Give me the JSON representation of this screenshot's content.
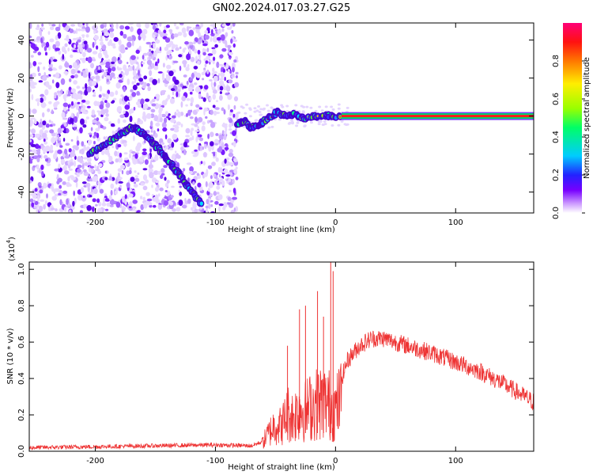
{
  "figure": {
    "title": "GN02.2024.017.03.27.G25"
  },
  "chart_data": [
    {
      "type": "heatmap",
      "title": "GN02.2024.017.03.27.G25",
      "xlabel": "Height of straight line (km)",
      "ylabel": "Frequency (Hz)",
      "xlim": [
        -255,
        165
      ],
      "ylim": [
        -51,
        49
      ],
      "xticks": [
        -200,
        -100,
        0,
        100
      ],
      "xtick_labels": [
        "-200",
        "-100",
        "0",
        "100"
      ],
      "yticks": [
        -40,
        -20,
        0,
        20,
        40
      ],
      "ytick_labels": [
        "-40",
        "-20",
        "0",
        "20",
        "40"
      ],
      "noise_region_xlim": [
        -255,
        -82
      ],
      "signal_tracks": [
        {
          "name_hint": "left-arc",
          "x": [
            -205,
            -195,
            -185,
            -175,
            -170,
            -165,
            -158,
            -152,
            -146,
            -140,
            -135,
            -130,
            -124,
            -118,
            -112
          ],
          "y": [
            -20,
            -16,
            -12,
            -8,
            -6,
            -7,
            -10,
            -14,
            -18,
            -23,
            -27,
            -31,
            -36,
            -41,
            -47
          ]
        },
        {
          "name_hint": "converging",
          "x": [
            -82,
            -75,
            -70,
            -62,
            -55,
            -48,
            -42,
            -35,
            -25,
            -15,
            -5,
            5
          ],
          "y": [
            -4,
            -3,
            -6,
            -4,
            -1,
            2,
            0,
            1,
            -1,
            0,
            0,
            0
          ]
        },
        {
          "name_hint": "steady-line",
          "x": [
            5,
            165
          ],
          "y": [
            0,
            0
          ]
        }
      ],
      "colorbar": {
        "label": "Normalized spectral amplitude",
        "range": [
          0.0,
          1.0
        ],
        "ticks": [
          0.0,
          0.2,
          0.4,
          0.6,
          0.8
        ],
        "tick_labels": [
          "0.0",
          "0.2",
          "0.4",
          "0.6",
          "0.8"
        ],
        "colors": [
          "#ffffff",
          "#cc99ff",
          "#7700ff",
          "#2222ff",
          "#00ccff",
          "#00ff66",
          "#99ff00",
          "#ffee00",
          "#ff7700",
          "#ff1111",
          "#ff0077"
        ]
      },
      "grid": false
    },
    {
      "type": "line",
      "xlabel": "Height of straight line (km)",
      "ylabel": "SNR (10 * v/v)",
      "y_multiplier": "(x10",
      "y_multiplier_exp": "4",
      "y_multiplier_close": ")",
      "xlim": [
        -255,
        165
      ],
      "ylim": [
        0.0,
        1.04
      ],
      "xticks": [
        -200,
        -100,
        0,
        100
      ],
      "xtick_labels": [
        "-200",
        "-100",
        "0",
        "100"
      ],
      "yticks": [
        0.0,
        0.2,
        0.4,
        0.6,
        0.8,
        1.0
      ],
      "ytick_labels": [
        "0.0",
        "0.2",
        "0.4",
        "0.6",
        "0.8",
        "1.0"
      ],
      "color": "#ee3333",
      "series": [
        {
          "x": [
            -255,
            -200,
            -150,
            -100,
            -70,
            -62,
            -55,
            -50,
            -45,
            -40,
            -35,
            -30,
            -25,
            -20,
            -15,
            -10,
            -5,
            0,
            10,
            20,
            30,
            40,
            60,
            80,
            100,
            120,
            140,
            165
          ],
          "y": [
            0.02,
            0.025,
            0.03,
            0.035,
            0.03,
            0.05,
            0.14,
            0.2,
            0.18,
            0.28,
            0.25,
            0.32,
            0.3,
            0.33,
            0.35,
            0.36,
            0.34,
            0.3,
            0.5,
            0.58,
            0.62,
            0.62,
            0.58,
            0.54,
            0.49,
            0.44,
            0.37,
            0.27
          ]
        }
      ],
      "spikes": [
        {
          "x": -40,
          "y": 0.58
        },
        {
          "x": -30,
          "y": 0.78
        },
        {
          "x": -25,
          "y": 0.8
        },
        {
          "x": -15,
          "y": 0.88
        },
        {
          "x": -10,
          "y": 0.74
        },
        {
          "x": -4,
          "y": 1.04
        },
        {
          "x": -2,
          "y": 0.99
        }
      ],
      "grid": false
    }
  ]
}
